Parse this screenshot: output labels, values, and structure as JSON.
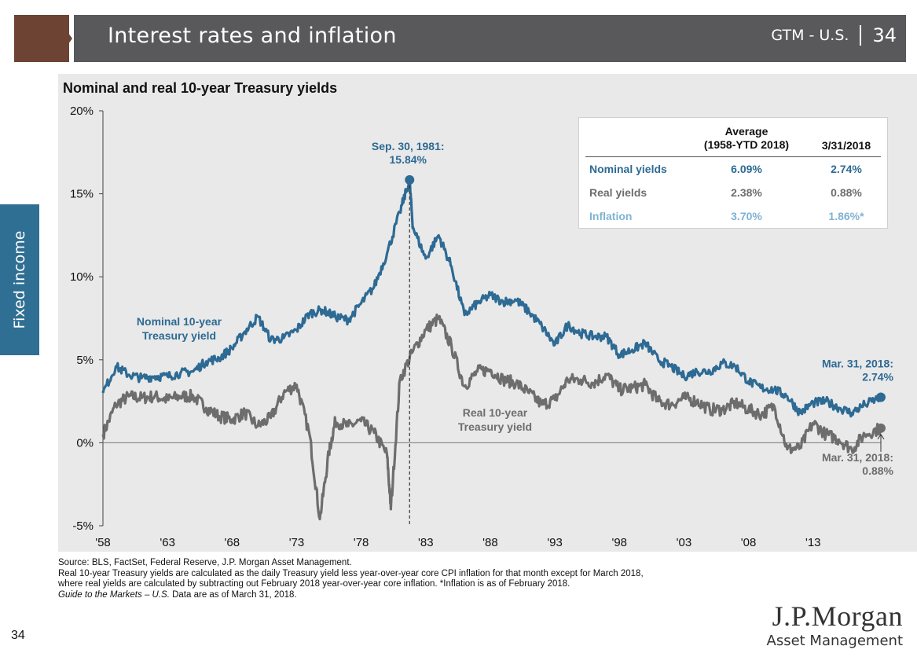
{
  "header": {
    "title": "Interest rates and inflation",
    "source": "GTM - U.S.",
    "page": "34"
  },
  "side_tab": "Fixed income",
  "page_number": "34",
  "logo": {
    "name": "J.P.Morgan",
    "sub": "Asset Management"
  },
  "colors": {
    "nominal": "#2d6a94",
    "real": "#6d6d6d",
    "inflation": "#7fb3d3",
    "panel": "#e9e9e9"
  },
  "table": {
    "col1": "Average",
    "col1b": "(1958-YTD 2018)",
    "col2": "3/31/2018",
    "rows": [
      {
        "label": "Nominal yields",
        "avg": "6.09%",
        "latest": "2.74%"
      },
      {
        "label": "Real yields",
        "avg": "2.38%",
        "latest": "0.88%"
      },
      {
        "label": "Inflation",
        "avg": "3.70%",
        "latest": "1.86%*"
      }
    ]
  },
  "footer": {
    "line1": "Source: BLS, FactSet, Federal Reserve, J.P. Morgan Asset Management.",
    "line2": "Real 10-year Treasury yields are calculated as the daily Treasury yield less year-over-year core CPI inflation for that month except for March 2018,",
    "line3": "where real yields are calculated by subtracting out February 2018 year-over-year core inflation. *Inflation is as of February 2018.",
    "line4_italic": "Guide to the Markets – U.S.",
    "line4_rest": " Data are as of March 31, 2018."
  },
  "chart_data": {
    "type": "line",
    "title": "Nominal and real 10-year Treasury yields",
    "xlim": [
      1958,
      2018.25
    ],
    "ylim": [
      -5,
      20
    ],
    "x_ticks": [
      "'58",
      "'63",
      "'68",
      "'73",
      "'78",
      "'83",
      "'88",
      "'93",
      "'98",
      "'03",
      "'08",
      "'13"
    ],
    "x_tick_years": [
      1958,
      1963,
      1968,
      1973,
      1978,
      1983,
      1988,
      1993,
      1998,
      2003,
      2008,
      2013
    ],
    "y_ticks": [
      "-5%",
      "0%",
      "5%",
      "10%",
      "15%",
      "20%"
    ],
    "y_tick_values": [
      -5,
      0,
      5,
      10,
      15,
      20
    ],
    "series": [
      {
        "name": "Nominal 10-year Treasury yield",
        "x": [
          1958,
          1959,
          1960,
          1961,
          1962,
          1963,
          1964,
          1965,
          1966,
          1967,
          1968,
          1969,
          1970,
          1971,
          1972,
          1973,
          1974,
          1975,
          1976,
          1977,
          1978,
          1979,
          1980,
          1981,
          1981.75,
          1982,
          1983,
          1984,
          1985,
          1986,
          1987,
          1988,
          1989,
          1990,
          1991,
          1992,
          1993,
          1994,
          1995,
          1996,
          1997,
          1998,
          1999,
          2000,
          2001,
          2002,
          2003,
          2004,
          2005,
          2006,
          2007,
          2008,
          2009,
          2010,
          2011,
          2012,
          2013,
          2014,
          2015,
          2016,
          2017,
          2018.25
        ],
        "values": [
          3.0,
          4.6,
          4.1,
          3.9,
          4.0,
          4.0,
          4.2,
          4.3,
          4.9,
          5.1,
          5.7,
          6.7,
          7.6,
          6.2,
          6.3,
          6.8,
          7.8,
          8.0,
          7.6,
          7.4,
          8.4,
          9.4,
          11.4,
          13.9,
          15.84,
          13.0,
          11.1,
          12.5,
          10.6,
          7.7,
          8.4,
          8.9,
          8.5,
          8.6,
          7.9,
          7.0,
          5.9,
          7.1,
          6.6,
          6.4,
          6.4,
          5.3,
          5.6,
          6.0,
          5.0,
          4.6,
          4.0,
          4.3,
          4.3,
          4.8,
          4.6,
          3.7,
          3.3,
          3.2,
          2.8,
          1.8,
          2.4,
          2.5,
          2.1,
          1.8,
          2.3,
          2.74
        ]
      },
      {
        "name": "Real 10-year Treasury yield",
        "x": [
          1958,
          1959,
          1960,
          1961,
          1962,
          1963,
          1964,
          1965,
          1966,
          1967,
          1968,
          1969,
          1970,
          1971,
          1972,
          1973,
          1974,
          1974.8,
          1975.5,
          1976,
          1977,
          1978,
          1979,
          1980,
          1980.3,
          1981,
          1982,
          1983,
          1984,
          1985,
          1986,
          1987,
          1988,
          1989,
          1990,
          1991,
          1992,
          1993,
          1994,
          1995,
          1996,
          1997,
          1998,
          1999,
          2000,
          2001,
          2002,
          2003,
          2004,
          2005,
          2006,
          2007,
          2008,
          2009,
          2010,
          2011,
          2012,
          2013,
          2014,
          2015,
          2016,
          2017,
          2018.25
        ],
        "values": [
          0.5,
          2.3,
          2.8,
          2.7,
          2.8,
          2.6,
          2.8,
          2.8,
          2.1,
          1.6,
          1.4,
          1.8,
          1.0,
          1.5,
          3.0,
          3.5,
          0.5,
          -4.6,
          -0.6,
          1.3,
          1.0,
          1.3,
          0.6,
          -0.7,
          -4.0,
          3.8,
          5.5,
          6.8,
          7.5,
          5.8,
          3.4,
          4.3,
          4.4,
          3.8,
          3.6,
          3.0,
          2.3,
          2.6,
          3.8,
          3.8,
          3.6,
          4.1,
          3.2,
          3.3,
          3.5,
          2.5,
          2.3,
          2.7,
          2.5,
          2.0,
          2.0,
          2.4,
          2.0,
          1.7,
          2.2,
          -0.4,
          -0.3,
          1.2,
          0.5,
          0.2,
          -0.4,
          0.5,
          0.88
        ]
      }
    ],
    "annotations": [
      {
        "text_line1": "Sep. 30, 1981:",
        "text_line2": "15.84%",
        "x": 1981.75,
        "y": 15.84
      },
      {
        "text_line1": "Mar. 31, 2018:",
        "text_line2": "2.74%",
        "x": 2018.25,
        "y": 2.74
      },
      {
        "text_line1": "Mar. 31, 2018:",
        "text_line2": "0.88%",
        "x": 2018.25,
        "y": 0.88
      }
    ],
    "series_labels": [
      {
        "line1": "Nominal 10-year",
        "line2": "Treasury yield"
      },
      {
        "line1": "Real 10-year",
        "line2": "Treasury yield"
      }
    ]
  }
}
